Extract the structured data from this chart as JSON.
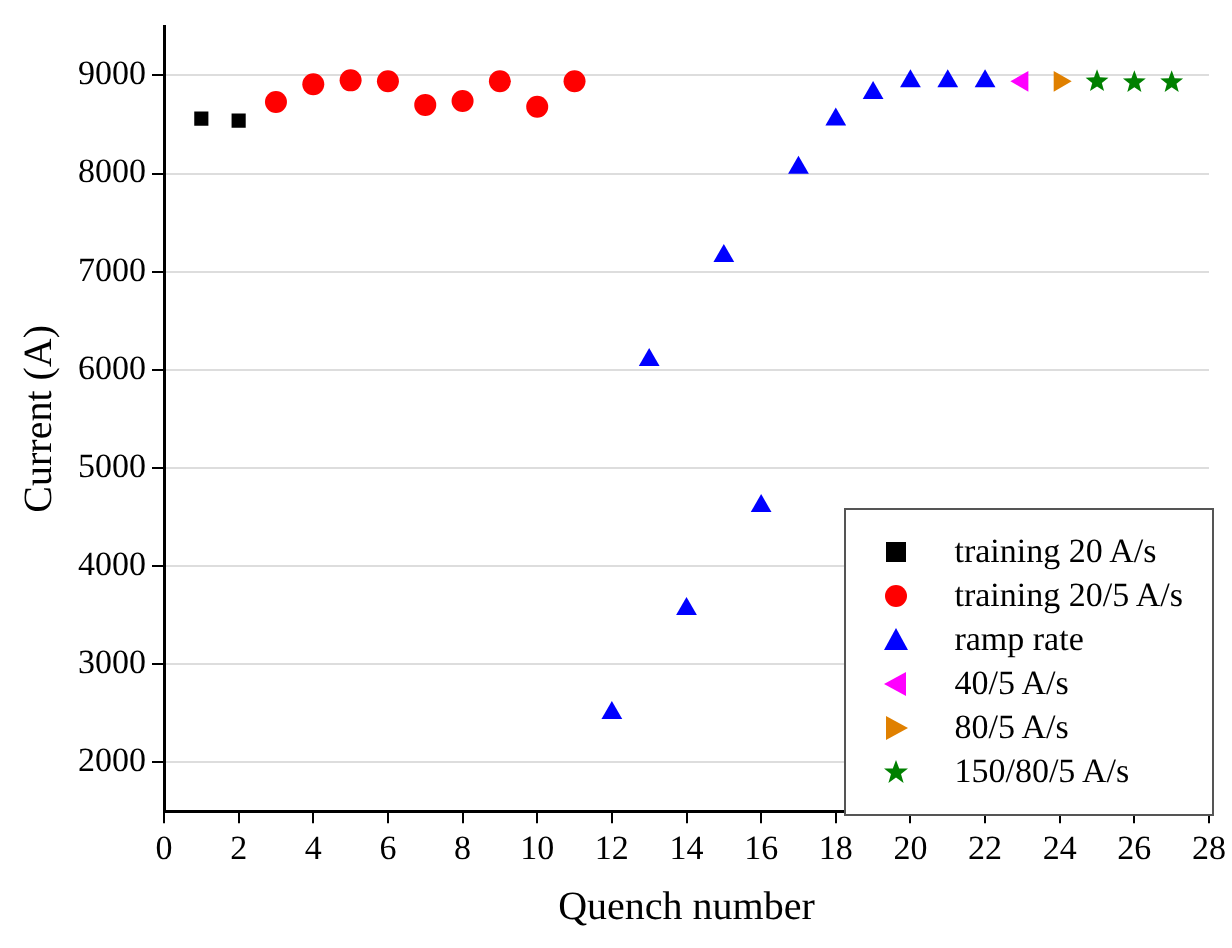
{
  "chart_data": {
    "type": "scatter",
    "xlabel": "Quench number",
    "ylabel": "Current (A)",
    "xlim": [
      0,
      28
    ],
    "xticks": [
      0,
      2,
      4,
      6,
      8,
      10,
      12,
      14,
      16,
      18,
      20,
      22,
      24,
      26,
      28
    ],
    "ylim": [
      1500,
      9500
    ],
    "yticks": [
      2000,
      3000,
      4000,
      5000,
      6000,
      7000,
      8000,
      9000
    ],
    "grid": "y",
    "legend": "bottom right",
    "series": [
      {
        "name": "training 20 A/s",
        "color": "#000000",
        "marker": "square",
        "x": [
          1,
          2
        ],
        "values": [
          8560,
          8540
        ]
      },
      {
        "name": "training 20/5 A/s",
        "color": "#ff0000",
        "marker": "circle",
        "x": [
          3,
          4,
          5,
          6,
          7,
          8,
          9,
          10,
          11
        ],
        "values": [
          8730,
          8910,
          8950,
          8940,
          8700,
          8740,
          8940,
          8680,
          8940
        ]
      },
      {
        "name": "ramp rate",
        "color": "#0000ff",
        "marker": "triangle",
        "x": [
          12,
          13,
          14,
          15,
          16,
          17,
          18,
          19,
          20,
          21,
          22
        ],
        "values": [
          2500,
          6100,
          3560,
          7160,
          4610,
          8060,
          8550,
          8820,
          8940,
          8940,
          8940
        ]
      },
      {
        "name": "40/5 A/s",
        "color": "#ff00ff",
        "marker": "triangle-left",
        "x": [
          23
        ],
        "values": [
          8940
        ]
      },
      {
        "name": "80/5 A/s",
        "color": "#e08000",
        "marker": "triangle-right",
        "x": [
          24
        ],
        "values": [
          8940
        ]
      },
      {
        "name": "150/80/5 A/s",
        "color": "#008000",
        "marker": "star",
        "x": [
          25,
          26,
          27
        ],
        "values": [
          8940,
          8930,
          8930
        ]
      }
    ]
  }
}
